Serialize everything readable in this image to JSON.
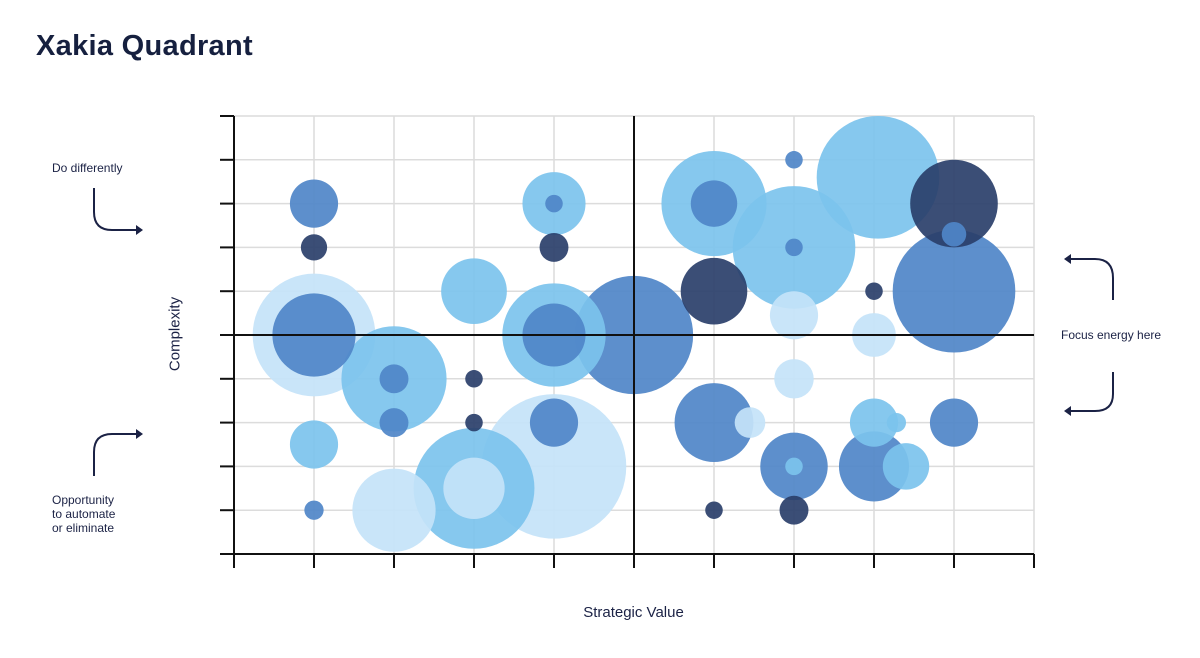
{
  "title": "Xakia Quadrant",
  "annotations": {
    "top_left": "Do differently",
    "bottom_left_lines": [
      "Opportunity",
      "to automate",
      "or eliminate"
    ],
    "right": "Focus energy here"
  },
  "chart_data": {
    "type": "scatter",
    "title": "Xakia Quadrant",
    "xlabel": "Strategic Value",
    "ylabel": "Complexity",
    "xlim": [
      0,
      10
    ],
    "ylim": [
      0,
      10
    ],
    "grid": true,
    "tick_labels": false,
    "quadrant_dividers": {
      "x": 5,
      "y": 5
    },
    "colors": {
      "light": "#c4e3f9",
      "medium": "#7cc3ed",
      "blue": "#4f86c8",
      "dark": "#2a3f6a"
    },
    "points": [
      {
        "x": 1,
        "y": 8,
        "size": 0.55,
        "color": "blue"
      },
      {
        "x": 1,
        "y": 7,
        "size": 0.3,
        "color": "dark"
      },
      {
        "x": 1,
        "y": 5,
        "size": 1.4,
        "color": "light"
      },
      {
        "x": 1,
        "y": 5,
        "size": 0.95,
        "color": "blue"
      },
      {
        "x": 1,
        "y": 2.5,
        "size": 0.55,
        "color": "medium"
      },
      {
        "x": 1,
        "y": 1,
        "size": 0.22,
        "color": "blue"
      },
      {
        "x": 2,
        "y": 4,
        "size": 1.2,
        "color": "medium"
      },
      {
        "x": 2,
        "y": 4,
        "size": 0.33,
        "color": "blue"
      },
      {
        "x": 2,
        "y": 3,
        "size": 0.33,
        "color": "blue"
      },
      {
        "x": 2,
        "y": 1,
        "size": 0.95,
        "color": "light"
      },
      {
        "x": 3,
        "y": 6,
        "size": 0.75,
        "color": "medium"
      },
      {
        "x": 3,
        "y": 4,
        "size": 0.2,
        "color": "dark"
      },
      {
        "x": 3,
        "y": 3,
        "size": 0.2,
        "color": "dark"
      },
      {
        "x": 3,
        "y": 1.5,
        "size": 1.38,
        "color": "medium"
      },
      {
        "x": 3,
        "y": 1.5,
        "size": 0.7,
        "color": "light"
      },
      {
        "x": 4,
        "y": 8,
        "size": 0.72,
        "color": "medium"
      },
      {
        "x": 4,
        "y": 8,
        "size": 0.2,
        "color": "blue"
      },
      {
        "x": 4,
        "y": 7,
        "size": 0.33,
        "color": "dark"
      },
      {
        "x": 4,
        "y": 5,
        "size": 1.18,
        "color": "medium"
      },
      {
        "x": 4,
        "y": 5,
        "size": 0.72,
        "color": "blue"
      },
      {
        "x": 4,
        "y": 3,
        "size": 0.55,
        "color": "blue"
      },
      {
        "x": 4,
        "y": 2,
        "size": 1.65,
        "color": "light"
      },
      {
        "x": 5,
        "y": 5,
        "size": 1.35,
        "color": "blue"
      },
      {
        "x": 6,
        "y": 8,
        "size": 1.2,
        "color": "medium"
      },
      {
        "x": 6,
        "y": 8,
        "size": 0.53,
        "color": "blue"
      },
      {
        "x": 6,
        "y": 6,
        "size": 0.76,
        "color": "dark"
      },
      {
        "x": 6,
        "y": 3,
        "size": 0.9,
        "color": "blue"
      },
      {
        "x": 6,
        "y": 1,
        "size": 0.2,
        "color": "dark"
      },
      {
        "x": 6.45,
        "y": 3,
        "size": 0.35,
        "color": "light"
      },
      {
        "x": 7,
        "y": 9,
        "size": 0.2,
        "color": "blue"
      },
      {
        "x": 7,
        "y": 7,
        "size": 1.4,
        "color": "medium"
      },
      {
        "x": 7,
        "y": 7,
        "size": 0.2,
        "color": "blue"
      },
      {
        "x": 7,
        "y": 5.45,
        "size": 0.55,
        "color": "light"
      },
      {
        "x": 7,
        "y": 4,
        "size": 0.45,
        "color": "light"
      },
      {
        "x": 7,
        "y": 2,
        "size": 0.77,
        "color": "blue"
      },
      {
        "x": 7,
        "y": 2,
        "size": 0.2,
        "color": "medium"
      },
      {
        "x": 7,
        "y": 1,
        "size": 0.33,
        "color": "dark"
      },
      {
        "x": 8.05,
        "y": 8.6,
        "size": 1.4,
        "color": "medium"
      },
      {
        "x": 8,
        "y": 6,
        "size": 0.2,
        "color": "dark"
      },
      {
        "x": 8,
        "y": 5,
        "size": 0.5,
        "color": "light"
      },
      {
        "x": 8,
        "y": 3,
        "size": 0.55,
        "color": "medium"
      },
      {
        "x": 8.28,
        "y": 3,
        "size": 0.22,
        "color": "medium"
      },
      {
        "x": 8,
        "y": 2,
        "size": 0.8,
        "color": "blue"
      },
      {
        "x": 8.4,
        "y": 2,
        "size": 0.53,
        "color": "medium"
      },
      {
        "x": 9,
        "y": 8,
        "size": 1.0,
        "color": "dark"
      },
      {
        "x": 9,
        "y": 6,
        "size": 1.4,
        "color": "blue"
      },
      {
        "x": 9,
        "y": 7.3,
        "size": 0.28,
        "color": "blue"
      },
      {
        "x": 9,
        "y": 3,
        "size": 0.55,
        "color": "blue"
      }
    ]
  }
}
